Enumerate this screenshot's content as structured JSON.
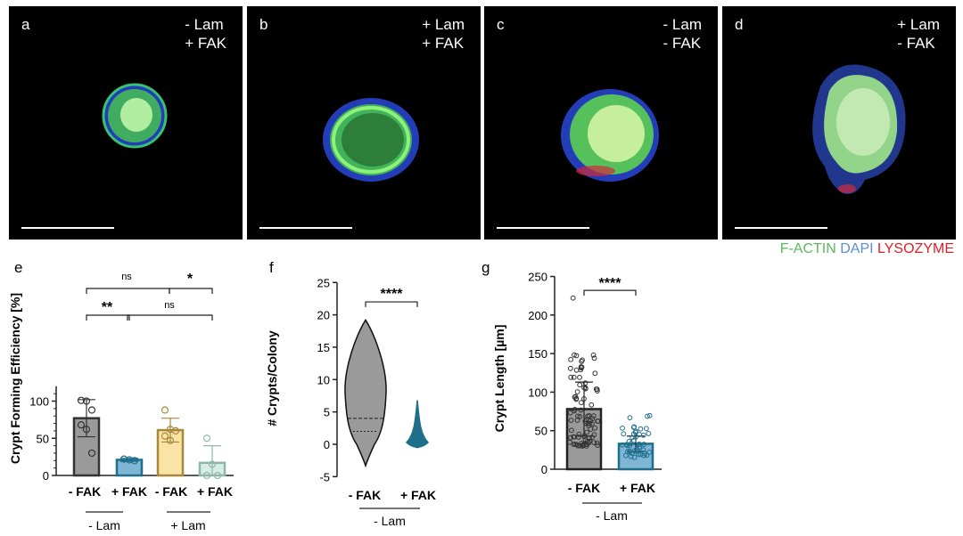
{
  "panels": [
    {
      "label": "a",
      "lam": "- Lam",
      "fak": "+ FAK"
    },
    {
      "label": "b",
      "lam": "+ Lam",
      "fak": "+ FAK"
    },
    {
      "label": "c",
      "lam": "- Lam",
      "fak": "- FAK"
    },
    {
      "label": "d",
      "lam": "+ Lam",
      "fak": "- FAK"
    }
  ],
  "legend": {
    "factin": "F-ACTIN",
    "dapi": "DAPI",
    "lysozyme": "LYSOZYME",
    "colors": {
      "factin": "#5cb85c",
      "dapi": "#5b8fc9",
      "lysozyme": "#e0202a"
    }
  },
  "chart_data": [
    {
      "panel": "e",
      "type": "bar",
      "title": "",
      "ylabel": "Crypt Forming Efficiency [%]",
      "ylim": [
        0,
        120
      ],
      "yticks": [
        0,
        50,
        100
      ],
      "categories": [
        "- FAK",
        "+ FAK",
        "- FAK",
        "+ FAK"
      ],
      "groups": [
        "- Lam",
        "+ Lam"
      ],
      "values": [
        77,
        21,
        61,
        17
      ],
      "errors": [
        25,
        2,
        16,
        23
      ],
      "colors": [
        "#9a9a9a",
        "#7fb6d6",
        "#f9e3a6",
        "#d6eee6"
      ],
      "edge_colors": [
        "#333333",
        "#1f6f8b",
        "#a8883a",
        "#8fb8a8"
      ],
      "points": [
        [
          101,
          100,
          88,
          68,
          62,
          30
        ],
        [
          22,
          21,
          20
        ],
        [
          88,
          62,
          60,
          53,
          47
        ],
        [
          50,
          15,
          0,
          0
        ]
      ],
      "annotations": [
        {
          "text": "ns",
          "between": [
            "- FAK (-Lam)",
            "- FAK (+Lam)"
          ]
        },
        {
          "text": "*",
          "between": [
            "- FAK (+Lam)",
            "+ FAK (+Lam)"
          ]
        },
        {
          "text": "**",
          "between": [
            "- FAK (-Lam)",
            "+ FAK (-Lam)"
          ]
        },
        {
          "text": "ns",
          "between": [
            "+ FAK (-Lam)",
            "+ FAK (+Lam)"
          ]
        }
      ]
    },
    {
      "panel": "f",
      "type": "violin",
      "title": "",
      "ylabel": "# Crypts/Colony",
      "ylim": [
        -5,
        25
      ],
      "yticks": [
        -5,
        0,
        5,
        10,
        15,
        20,
        25
      ],
      "categories": [
        "- FAK",
        "+ FAK"
      ],
      "group": "- Lam",
      "median": [
        4,
        0.2
      ],
      "quartiles": [
        [
          2,
          4
        ],
        [
          0,
          0.3
        ]
      ],
      "range": [
        [
          -3.3,
          19.2
        ],
        [
          -0.5,
          6.8
        ]
      ],
      "colors": [
        "#9a9a9a",
        "#1f6f8b"
      ],
      "annotation": "****"
    },
    {
      "panel": "g",
      "type": "bar",
      "title": "",
      "ylabel": "Crypt Length [µm]",
      "ylim": [
        0,
        250
      ],
      "yticks": [
        0,
        50,
        100,
        150,
        200,
        250
      ],
      "categories": [
        "- FAK",
        "+ FAK"
      ],
      "group": "- Lam",
      "values": [
        78,
        33
      ],
      "errors": [
        35,
        10
      ],
      "colors": [
        "#9a9a9a",
        "#7fb6d6"
      ],
      "annotation": "****"
    }
  ],
  "texts": {
    "e_label": "e",
    "f_label": "f",
    "g_label": "g",
    "e_ann": [
      "ns",
      "*",
      "**",
      "ns"
    ],
    "e_xcats": [
      "- FAK",
      "+ FAK",
      "- FAK",
      "+ FAK"
    ],
    "e_groups": [
      "- Lam",
      "+ Lam"
    ],
    "f_xcats": [
      "- FAK",
      "+ FAK"
    ],
    "f_group": "- Lam",
    "f_ann": "****",
    "g_xcats": [
      "- FAK",
      "+ FAK"
    ],
    "g_group": "- Lam",
    "g_ann": "****"
  }
}
